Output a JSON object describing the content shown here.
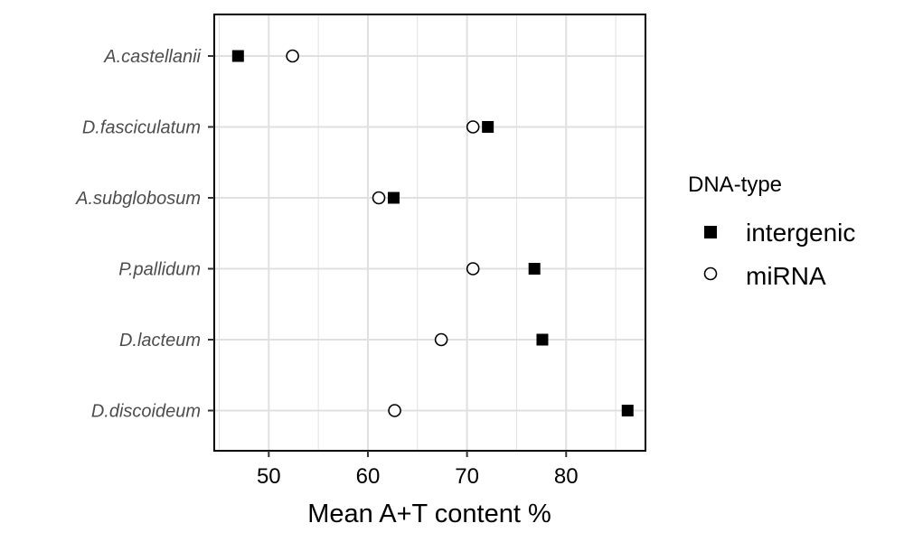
{
  "chart_data": {
    "type": "scatter",
    "title": "",
    "xlabel": "Mean A+T content %",
    "ylabel": "",
    "xlim": [
      44.5,
      88.0
    ],
    "x_ticks": [
      "50",
      "60",
      "70",
      "80"
    ],
    "categories": [
      "A.castellanii",
      "D.fasciculatum",
      "A.subglobosum",
      "P.pallidum",
      "D.lacteum",
      "D.discoideum"
    ],
    "series": [
      {
        "name": "intergenic",
        "marker": "filled-square",
        "color": "#000000",
        "values": [
          46.9,
          72.1,
          62.6,
          76.8,
          77.6,
          86.2
        ]
      },
      {
        "name": "miRNA",
        "marker": "open-circle",
        "color": "#000000",
        "values": [
          52.4,
          70.6,
          61.1,
          70.6,
          67.4,
          62.7
        ]
      }
    ],
    "legend": {
      "title": "DNA-type",
      "position": "right"
    },
    "grid": true,
    "grid_color": "#e0e0e0"
  }
}
